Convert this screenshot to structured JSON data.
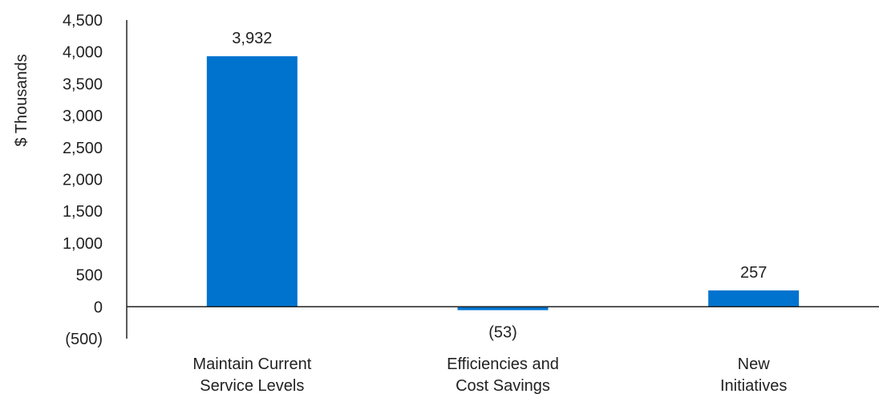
{
  "chart_data": {
    "type": "bar",
    "categories": [
      [
        "Maintain Current",
        "Service Levels"
      ],
      [
        "Efficiencies and",
        "Cost Savings"
      ],
      [
        "New",
        "Initiatives"
      ]
    ],
    "values": [
      3932,
      -53,
      257
    ],
    "data_labels": [
      "3,932",
      "(53)",
      "257"
    ],
    "ylabel": "$ Thousands",
    "ylim": [
      -500,
      4500
    ],
    "yticks": [
      -500,
      0,
      500,
      1000,
      1500,
      2000,
      2500,
      3000,
      3500,
      4000,
      4500
    ],
    "ytick_labels": [
      "(500)",
      "0",
      "500",
      "1,000",
      "1,500",
      "2,000",
      "2,500",
      "3,000",
      "3,500",
      "4,000",
      "4,500"
    ],
    "grid": false,
    "legend": "none",
    "bar_color": "#0073CF"
  }
}
